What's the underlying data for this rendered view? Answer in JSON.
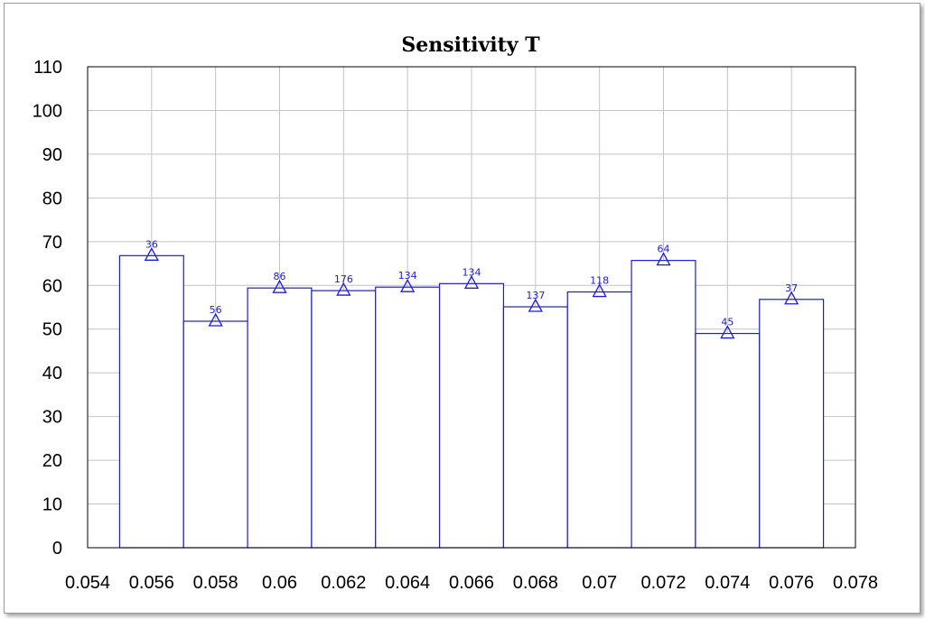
{
  "chart_data": {
    "type": "bar",
    "title": "Sensitivity T",
    "xlabel": "",
    "ylabel": "",
    "xlim": [
      0.054,
      0.078
    ],
    "ylim": [
      0,
      110
    ],
    "x_ticks": [
      "0.054",
      "0.056",
      "0.058",
      "0.06",
      "0.062",
      "0.064",
      "0.066",
      "0.068",
      "0.07",
      "0.072",
      "0.074",
      "0.076",
      "0.078"
    ],
    "y_ticks": [
      "0",
      "10",
      "20",
      "30",
      "40",
      "50",
      "60",
      "70",
      "80",
      "90",
      "100",
      "110"
    ],
    "bin_width": 0.002,
    "bin_centers": [
      0.056,
      0.058,
      0.06,
      0.062,
      0.064,
      0.066,
      0.068,
      0.07,
      0.072,
      0.074,
      0.076
    ],
    "values": [
      66.8,
      51.8,
      59.4,
      58.8,
      59.6,
      60.4,
      55.1,
      58.5,
      65.7,
      49.0,
      56.8
    ],
    "data_labels": [
      "36",
      "56",
      "86",
      "176",
      "134",
      "134",
      "137",
      "118",
      "64",
      "45",
      "37"
    ],
    "grid": true,
    "colors": {
      "series": "#1c1cd8",
      "grid": "#c4c4c4",
      "axis": "#000000"
    },
    "marker": "triangle"
  }
}
